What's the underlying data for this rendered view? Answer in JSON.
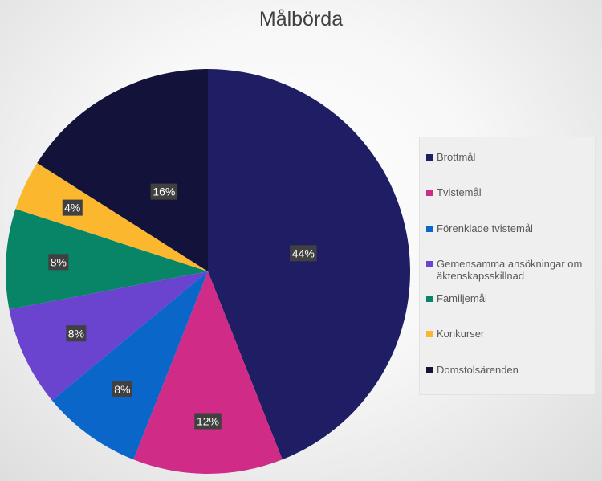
{
  "chart_data": {
    "type": "pie",
    "title": "Målbörda",
    "categories": [
      "Brottmål",
      "Tvistemål",
      "Förenklade tvistemål",
      "Gemensamma ansökningar om äktenskapsskillnad",
      "Familjemål",
      "Konkurser",
      "Domstolsärenden"
    ],
    "values": [
      44,
      12,
      8,
      8,
      8,
      4,
      16
    ],
    "labels": [
      "44%",
      "12%",
      "8%",
      "8%",
      "8%",
      "4%",
      "16%"
    ],
    "colors": [
      "#1f1d63",
      "#d02b86",
      "#0a66c8",
      "#6a43cf",
      "#078566",
      "#fbb82e",
      "#12123a"
    ],
    "legend_position": "right"
  }
}
